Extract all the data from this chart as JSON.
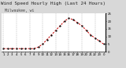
{
  "title": "Wind Speed Hourly High (Last 24 Hours)",
  "subtitle": "Milwaukee, wi",
  "x_labels": [
    "1",
    "2",
    "3",
    "4",
    "5",
    "6",
    "7",
    "8",
    "9",
    "10",
    "11",
    "12",
    "13",
    "14",
    "15",
    "16",
    "17",
    "18",
    "19",
    "20",
    "21",
    "22",
    "23",
    "0"
  ],
  "y_values": [
    2,
    2,
    2,
    2,
    2,
    2,
    2,
    2,
    3,
    5,
    8,
    11,
    14,
    17,
    20,
    22,
    21,
    19,
    17,
    14,
    11,
    9,
    7,
    5
  ],
  "line_color": "#cc0000",
  "marker_color": "#111111",
  "bg_color": "#d8d8d8",
  "plot_bg": "#ffffff",
  "ylim": [
    0,
    25
  ],
  "yticks": [
    0,
    5,
    10,
    15,
    20,
    25
  ],
  "grid_color": "#888888",
  "title_fontsize": 4.2,
  "subtitle_fontsize": 3.5,
  "tick_fontsize": 2.8,
  "right_border_color": "#000000"
}
